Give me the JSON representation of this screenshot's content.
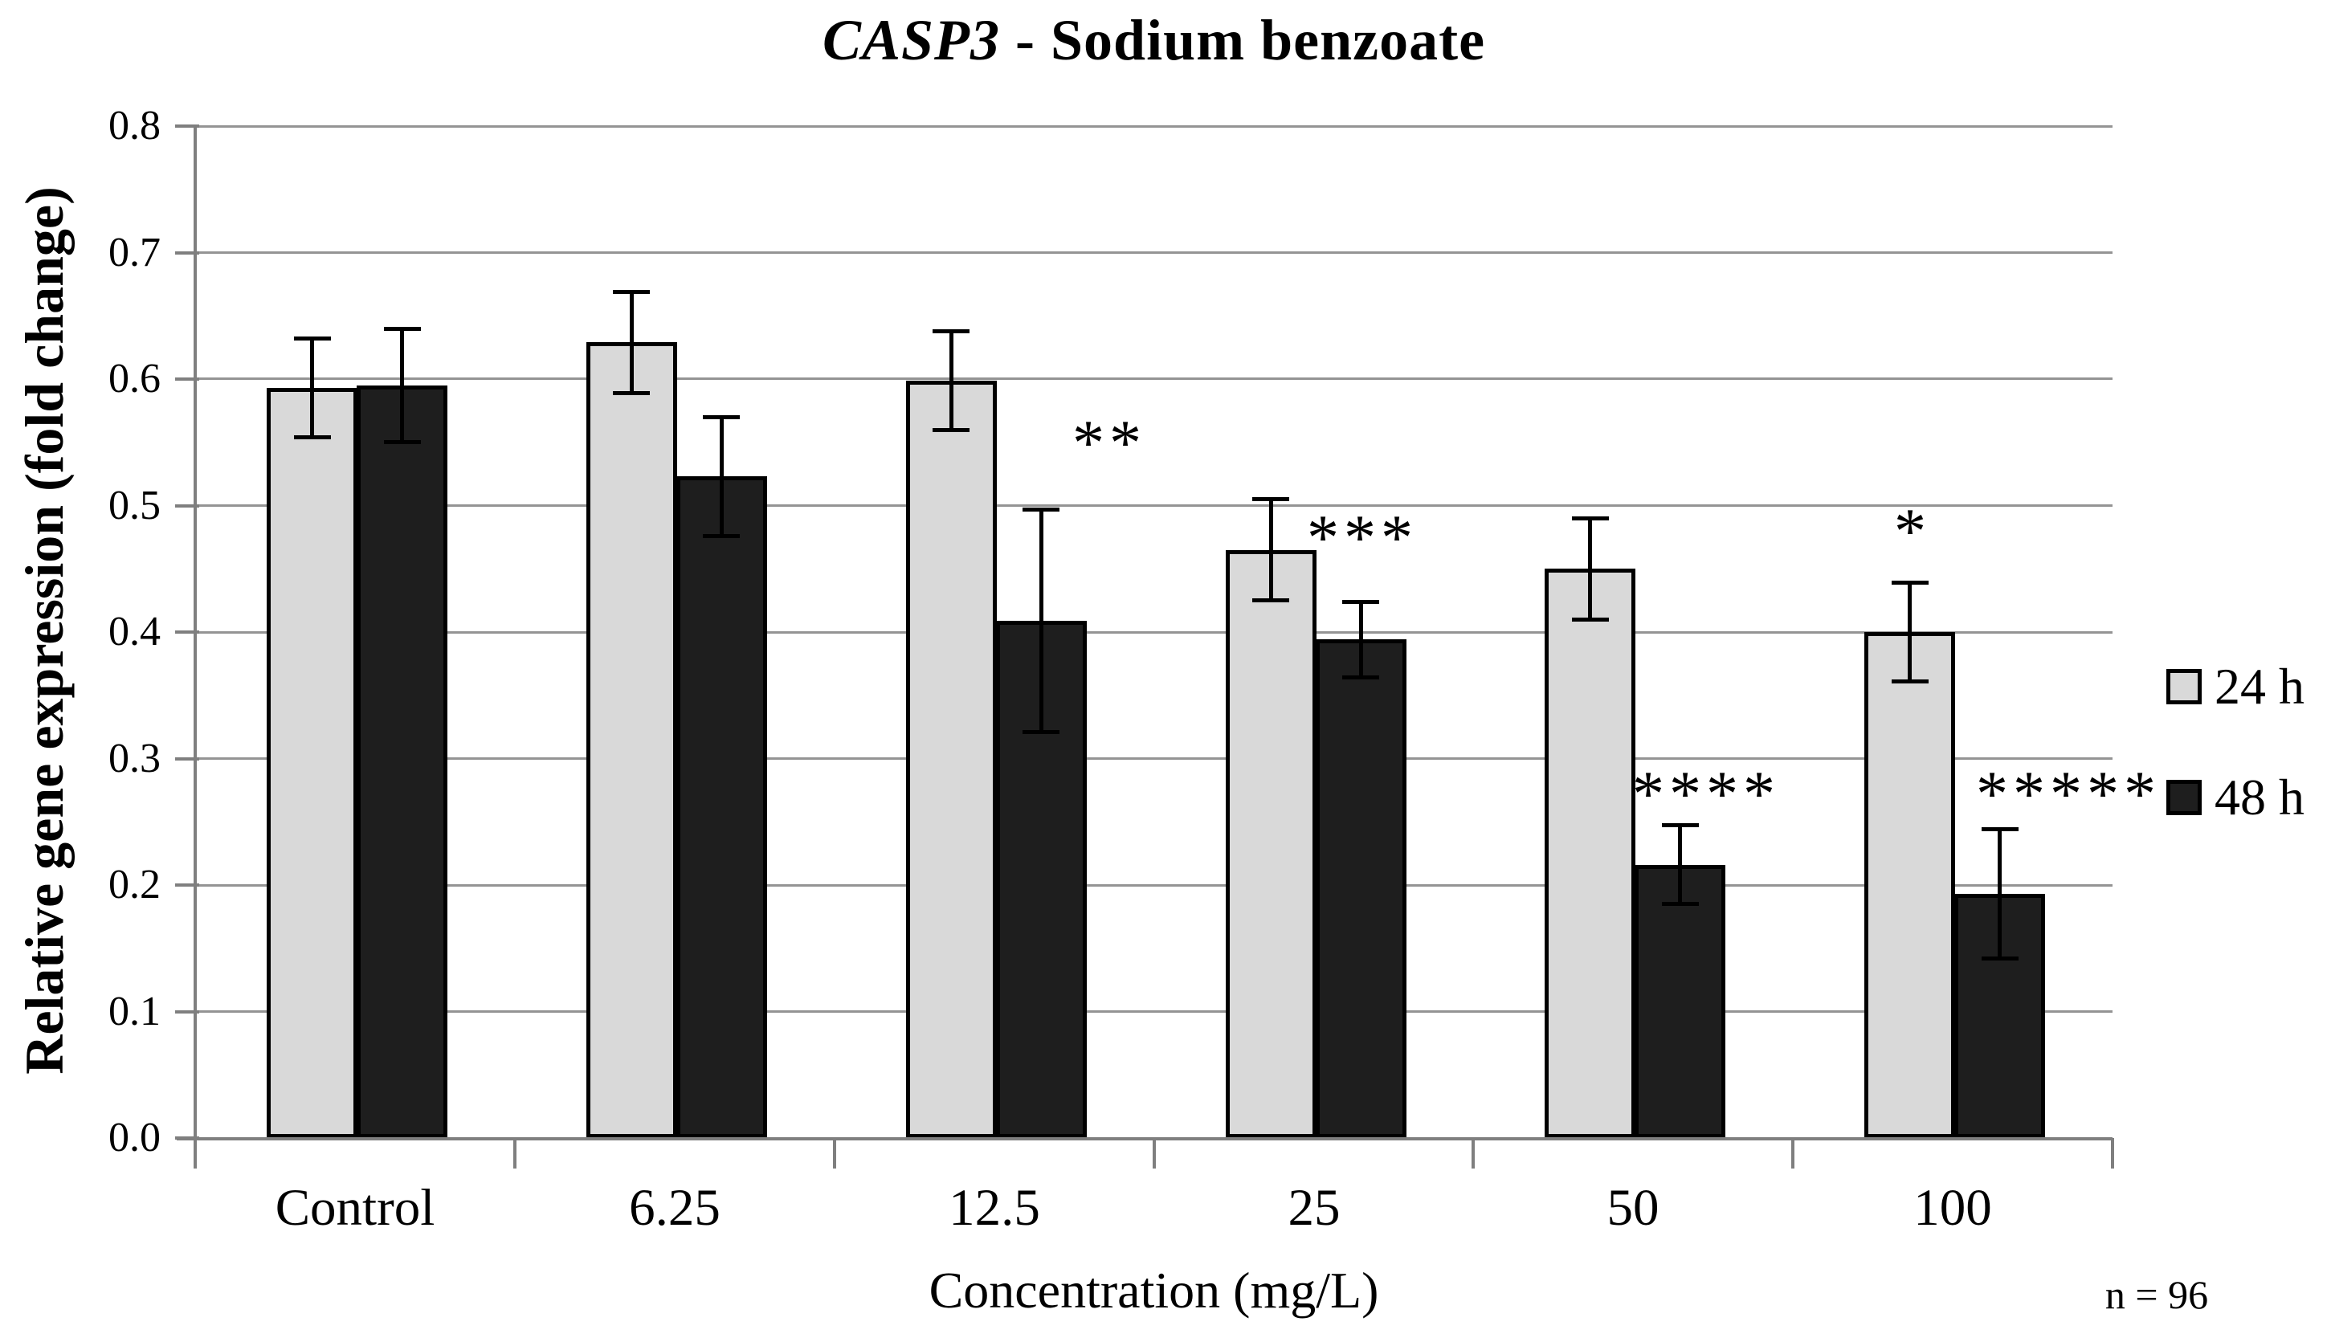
{
  "chart_data": {
    "type": "bar",
    "title": "CASP3 - Sodium benzoate",
    "title_parts": {
      "italic": "CASP3",
      "regular": " - Sodium benzoate"
    },
    "xlabel": "Concentration (mg/L)",
    "ylabel": "Relative gene expression (fold change)",
    "categories": [
      "Control",
      "6.25",
      "12.5",
      "25",
      "50",
      "100"
    ],
    "series": [
      {
        "name": "24 h",
        "fill": "#d9d9d9",
        "values": [
          0.593,
          0.629,
          0.599,
          0.465,
          0.45,
          0.4
        ],
        "errors": [
          0.039,
          0.04,
          0.039,
          0.04,
          0.04,
          0.039
        ]
      },
      {
        "name": "48 h",
        "fill": "#1e1e1e",
        "values": [
          0.595,
          0.523,
          0.409,
          0.394,
          0.216,
          0.193
        ],
        "errors": [
          0.045,
          0.047,
          0.088,
          0.03,
          0.031,
          0.051
        ]
      }
    ],
    "significance_markers": [
      {
        "series": "24 h",
        "category": "100",
        "text": "*"
      },
      {
        "series": "48 h",
        "category": "12.5",
        "text": "**"
      },
      {
        "series": "48 h",
        "category": "25",
        "text": "***"
      },
      {
        "series": "48 h",
        "category": "50",
        "text": "****"
      },
      {
        "series": "48 h",
        "category": "100",
        "text": "*****"
      }
    ],
    "ylim": [
      0.0,
      0.8
    ],
    "ytick_labels": [
      "0.0",
      "0.1",
      "0.2",
      "0.3",
      "0.4",
      "0.5",
      "0.6",
      "0.7",
      "0.8"
    ],
    "grid": true,
    "legend_position": "right",
    "annotation_note": "n = 96",
    "colors": {
      "bar_24h": "#d9d9d9",
      "bar_48h": "#1e1e1e",
      "bar_border": "#000000",
      "gridline": "#949494",
      "axis": "#7f7f7f",
      "error_bar": "#000000",
      "text": "#000000"
    }
  }
}
